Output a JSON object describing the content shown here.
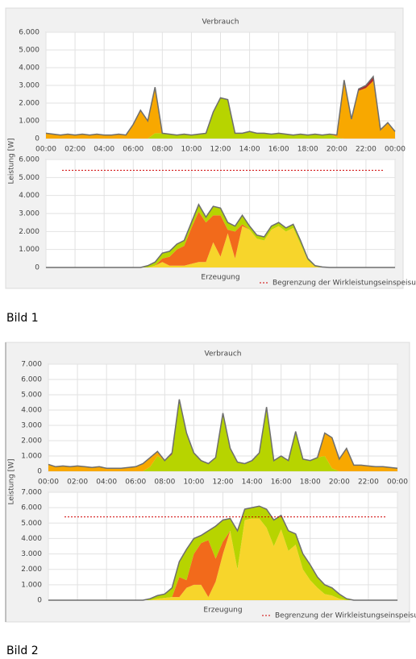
{
  "captions": [
    "Bild 1",
    "Bild 2"
  ],
  "chart_data": [
    {
      "type": "area",
      "title": "Verbrauch",
      "ylabel": "Leistung [W]",
      "grid": true,
      "x": [
        0,
        0.5,
        1,
        1.5,
        2,
        2.5,
        3,
        3.5,
        4,
        4.5,
        5,
        5.5,
        6,
        6.5,
        7,
        7.5,
        8,
        8.5,
        9,
        9.5,
        10,
        10.5,
        11,
        11.5,
        12,
        12.5,
        13,
        13.5,
        14,
        14.5,
        15,
        15.5,
        16,
        16.5,
        17,
        17.5,
        18,
        18.5,
        19,
        19.5,
        20,
        20.5,
        21,
        21.5,
        22,
        22.5,
        23,
        23.5,
        24
      ],
      "xlim": [
        0,
        24
      ],
      "xticks": [
        {
          "value": 0,
          "label": "00:00"
        },
        {
          "value": 2,
          "label": "02:00"
        },
        {
          "value": 4,
          "label": "04:00"
        },
        {
          "value": 6,
          "label": "06:00"
        },
        {
          "value": 8,
          "label": "08:00"
        },
        {
          "value": 10,
          "label": "10:00"
        },
        {
          "value": 12,
          "label": "12:00"
        },
        {
          "value": 14,
          "label": "14:00"
        },
        {
          "value": 16,
          "label": "16:00"
        },
        {
          "value": 18,
          "label": "18:00"
        },
        {
          "value": 20,
          "label": "20:00"
        },
        {
          "value": 22,
          "label": "22:00"
        },
        {
          "value": 24,
          "label": "00:00"
        }
      ],
      "ylim": [
        0,
        6000
      ],
      "yticks": [
        0,
        {
          "value": 1000,
          "label": "1.000"
        },
        {
          "value": 2000,
          "label": "2.000"
        },
        {
          "value": 3000,
          "label": "3.000"
        },
        {
          "value": 4000,
          "label": "4.000"
        },
        {
          "value": 5000,
          "label": "5.000"
        },
        {
          "value": 6000,
          "label": "6.000"
        }
      ],
      "outline_color": "#6e6e6e",
      "series": [
        {
          "color": "#b7d400",
          "values": [
            0,
            0,
            0,
            0,
            0,
            0,
            0,
            0,
            0,
            0,
            0,
            0,
            0,
            0,
            0,
            300,
            300,
            250,
            200,
            250,
            200,
            250,
            300,
            1500,
            2300,
            2200,
            300,
            300,
            400,
            300,
            300,
            250,
            300,
            250,
            200,
            250,
            200,
            250,
            200,
            250,
            50,
            0,
            0,
            0,
            0,
            0,
            0,
            0,
            0
          ]
        },
        {
          "color": "#f8a800",
          "values": [
            300,
            250,
            200,
            250,
            200,
            250,
            200,
            250,
            200,
            200,
            250,
            200,
            800,
            1600,
            1000,
            2600,
            0,
            0,
            0,
            0,
            0,
            0,
            0,
            0,
            0,
            0,
            0,
            0,
            0,
            0,
            0,
            0,
            0,
            0,
            0,
            0,
            0,
            0,
            0,
            0,
            150,
            3150,
            1100,
            2700,
            2850,
            3250,
            500,
            900,
            400
          ]
        },
        {
          "color": "#b52a25",
          "values": [
            0,
            0,
            0,
            0,
            0,
            0,
            0,
            0,
            0,
            0,
            0,
            0,
            0,
            0,
            0,
            0,
            0,
            0,
            0,
            0,
            0,
            0,
            0,
            0,
            0,
            0,
            0,
            0,
            0,
            0,
            0,
            0,
            0,
            0,
            0,
            0,
            0,
            0,
            0,
            0,
            0,
            150,
            0,
            100,
            150,
            250,
            0,
            0,
            0
          ]
        }
      ]
    },
    {
      "type": "area",
      "title": "Erzeugung",
      "grid": true,
      "show_xtick_labels": false,
      "x": [
        0,
        0.5,
        1,
        1.5,
        2,
        2.5,
        3,
        3.5,
        4,
        4.5,
        5,
        5.5,
        6,
        6.5,
        7,
        7.5,
        8,
        8.5,
        9,
        9.5,
        10,
        10.5,
        11,
        11.5,
        12,
        12.5,
        13,
        13.5,
        14,
        14.5,
        15,
        15.5,
        16,
        16.5,
        17,
        17.5,
        18,
        18.5,
        19,
        19.5,
        20,
        20.5,
        21,
        21.5,
        22,
        22.5,
        23,
        23.5,
        24
      ],
      "xlim": [
        0,
        24
      ],
      "xticks": [
        0,
        2,
        4,
        6,
        8,
        10,
        12,
        14,
        16,
        18,
        20,
        22,
        24
      ],
      "ylim": [
        0,
        6000
      ],
      "yticks": [
        0,
        {
          "value": 1000,
          "label": "1.000"
        },
        {
          "value": 2000,
          "label": "2.000"
        },
        {
          "value": 3000,
          "label": "3.000"
        },
        {
          "value": 4000,
          "label": "4.000"
        },
        {
          "value": 5000,
          "label": "5.000"
        },
        {
          "value": 6000,
          "label": "6.000"
        }
      ],
      "outline_color": "#6e6e6e",
      "limit": {
        "value": 5400,
        "label": "Begrenzung der Wirkleistungseinspeisung",
        "color": "#d00000"
      },
      "series": [
        {
          "color": "#f7d52b",
          "values": [
            0,
            0,
            0,
            0,
            0,
            0,
            0,
            0,
            0,
            0,
            0,
            0,
            0,
            0,
            0,
            100,
            300,
            100,
            100,
            100,
            200,
            300,
            300,
            1400,
            600,
            1900,
            500,
            2300,
            2100,
            1600,
            1500,
            2100,
            2300,
            2000,
            2200,
            1300,
            400,
            50,
            0,
            0,
            0,
            0,
            0,
            0,
            0,
            0,
            0,
            0,
            0
          ]
        },
        {
          "color": "#f26a1b",
          "values": [
            0,
            0,
            0,
            0,
            0,
            0,
            0,
            0,
            0,
            0,
            0,
            0,
            0,
            0,
            0,
            0,
            200,
            500,
            900,
            1100,
            2000,
            2800,
            2200,
            1500,
            2300,
            200,
            1500,
            100,
            0,
            0,
            0,
            0,
            0,
            0,
            0,
            0,
            0,
            0,
            0,
            0,
            0,
            0,
            0,
            0,
            0,
            0,
            0,
            0,
            0
          ]
        },
        {
          "color": "#b7d400",
          "values": [
            0,
            0,
            0,
            0,
            0,
            0,
            0,
            0,
            0,
            0,
            0,
            0,
            0,
            0,
            100,
            200,
            300,
            300,
            300,
            300,
            300,
            400,
            300,
            500,
            400,
            400,
            300,
            500,
            200,
            200,
            200,
            200,
            200,
            200,
            200,
            200,
            100,
            50,
            30,
            0,
            0,
            0,
            0,
            0,
            0,
            0,
            0,
            0,
            0
          ]
        }
      ]
    },
    {
      "type": "area",
      "title": "Verbrauch",
      "ylabel": "Leistung [W]",
      "grid": true,
      "x": [
        0,
        0.5,
        1,
        1.5,
        2,
        2.5,
        3,
        3.5,
        4,
        4.5,
        5,
        5.5,
        6,
        6.5,
        7,
        7.5,
        8,
        8.5,
        9,
        9.5,
        10,
        10.5,
        11,
        11.5,
        12,
        12.5,
        13,
        13.5,
        14,
        14.5,
        15,
        15.5,
        16,
        16.5,
        17,
        17.5,
        18,
        18.5,
        19,
        19.5,
        20,
        20.5,
        21,
        21.5,
        22,
        22.5,
        23,
        23.5,
        24
      ],
      "xlim": [
        0,
        24
      ],
      "xticks": [
        {
          "value": 0,
          "label": "00:00"
        },
        {
          "value": 2,
          "label": "02:00"
        },
        {
          "value": 4,
          "label": "04:00"
        },
        {
          "value": 6,
          "label": "06:00"
        },
        {
          "value": 8,
          "label": "08:00"
        },
        {
          "value": 10,
          "label": "10:00"
        },
        {
          "value": 12,
          "label": "12:00"
        },
        {
          "value": 14,
          "label": "14:00"
        },
        {
          "value": 16,
          "label": "16:00"
        },
        {
          "value": 18,
          "label": "18:00"
        },
        {
          "value": 20,
          "label": "20:00"
        },
        {
          "value": 22,
          "label": "22:00"
        },
        {
          "value": 24,
          "label": "00:00"
        }
      ],
      "ylim": [
        0,
        7000
      ],
      "yticks": [
        0,
        {
          "value": 1000,
          "label": "1.000"
        },
        {
          "value": 2000,
          "label": "2.000"
        },
        {
          "value": 3000,
          "label": "3.000"
        },
        {
          "value": 4000,
          "label": "4.000"
        },
        {
          "value": 5000,
          "label": "5.000"
        },
        {
          "value": 6000,
          "label": "6.000"
        },
        {
          "value": 7000,
          "label": "7.000"
        }
      ],
      "outline_color": "#6e6e6e",
      "series": [
        {
          "color": "#b7d400",
          "values": [
            0,
            0,
            0,
            0,
            0,
            0,
            0,
            0,
            0,
            0,
            0,
            0,
            0,
            0,
            300,
            1000,
            700,
            1100,
            4700,
            2500,
            1200,
            700,
            500,
            900,
            3800,
            1500,
            600,
            500,
            700,
            1200,
            4200,
            700,
            1000,
            700,
            2600,
            800,
            700,
            900,
            1000,
            200,
            0,
            0,
            0,
            0,
            0,
            0,
            0,
            0,
            0
          ]
        },
        {
          "color": "#f8a800",
          "values": [
            450,
            300,
            350,
            300,
            350,
            300,
            250,
            300,
            200,
            200,
            200,
            250,
            300,
            500,
            600,
            300,
            0,
            0,
            0,
            0,
            0,
            0,
            0,
            0,
            0,
            0,
            0,
            0,
            0,
            0,
            0,
            0,
            0,
            0,
            0,
            0,
            0,
            0,
            1500,
            2000,
            800,
            1500,
            400,
            400,
            350,
            300,
            300,
            250,
            200
          ]
        },
        {
          "color": "#b52a25",
          "values": [
            0,
            0,
            0,
            0,
            0,
            0,
            0,
            0,
            0,
            0,
            0,
            0,
            0,
            0,
            0,
            0,
            0,
            100,
            0,
            0,
            0,
            0,
            0,
            0,
            0,
            0,
            0,
            0,
            0,
            0,
            0,
            0,
            0,
            0,
            0,
            0,
            0,
            0,
            0,
            0,
            0,
            0,
            0,
            0,
            0,
            0,
            0,
            0,
            0
          ]
        }
      ]
    },
    {
      "type": "area",
      "title": "Erzeugung",
      "grid": true,
      "show_xtick_labels": false,
      "x": [
        0,
        0.5,
        1,
        1.5,
        2,
        2.5,
        3,
        3.5,
        4,
        4.5,
        5,
        5.5,
        6,
        6.5,
        7,
        7.5,
        8,
        8.5,
        9,
        9.5,
        10,
        10.5,
        11,
        11.5,
        12,
        12.5,
        13,
        13.5,
        14,
        14.5,
        15,
        15.5,
        16,
        16.5,
        17,
        17.5,
        18,
        18.5,
        19,
        19.5,
        20,
        20.5,
        21,
        21.5,
        22,
        22.5,
        23,
        23.5,
        24
      ],
      "xlim": [
        0,
        24
      ],
      "xticks": [
        0,
        2,
        4,
        6,
        8,
        10,
        12,
        14,
        16,
        18,
        20,
        22,
        24
      ],
      "ylim": [
        0,
        7000
      ],
      "yticks": [
        0,
        {
          "value": 1000,
          "label": "1.000"
        },
        {
          "value": 2000,
          "label": "2.000"
        },
        {
          "value": 3000,
          "label": "3.000"
        },
        {
          "value": 4000,
          "label": "4.000"
        },
        {
          "value": 5000,
          "label": "5.000"
        },
        {
          "value": 6000,
          "label": "6.000"
        },
        {
          "value": 7000,
          "label": "7.000"
        }
      ],
      "outline_color": "#6e6e6e",
      "limit": {
        "value": 5400,
        "label": "Begrenzung der Wirkleistungseinspeisung",
        "color": "#d00000"
      },
      "series": [
        {
          "color": "#f7d52b",
          "values": [
            0,
            0,
            0,
            0,
            0,
            0,
            0,
            0,
            0,
            0,
            0,
            0,
            0,
            0,
            0,
            100,
            150,
            200,
            200,
            800,
            1000,
            1000,
            200,
            1200,
            3000,
            4500,
            2000,
            5200,
            5300,
            5300,
            4700,
            3500,
            4600,
            3200,
            3600,
            2000,
            1300,
            800,
            400,
            300,
            100,
            0,
            0,
            0,
            0,
            0,
            0,
            0,
            0
          ]
        },
        {
          "color": "#f26a1b",
          "values": [
            0,
            0,
            0,
            0,
            0,
            0,
            0,
            0,
            0,
            0,
            0,
            0,
            0,
            0,
            0,
            0,
            0,
            0,
            1300,
            500,
            2000,
            2700,
            3700,
            1500,
            800,
            0,
            0,
            0,
            0,
            0,
            0,
            0,
            0,
            0,
            0,
            0,
            0,
            0,
            0,
            0,
            0,
            0,
            0,
            0,
            0,
            0,
            0,
            0,
            0
          ]
        },
        {
          "color": "#b7d400",
          "values": [
            0,
            0,
            0,
            0,
            0,
            0,
            0,
            0,
            0,
            0,
            0,
            0,
            0,
            0,
            100,
            200,
            250,
            600,
            1000,
            2000,
            1000,
            500,
            600,
            2100,
            1400,
            800,
            2500,
            700,
            700,
            800,
            1200,
            1700,
            900,
            1300,
            700,
            1000,
            1000,
            700,
            600,
            500,
            300,
            100,
            0,
            0,
            0,
            0,
            0,
            0,
            0
          ]
        }
      ]
    }
  ]
}
